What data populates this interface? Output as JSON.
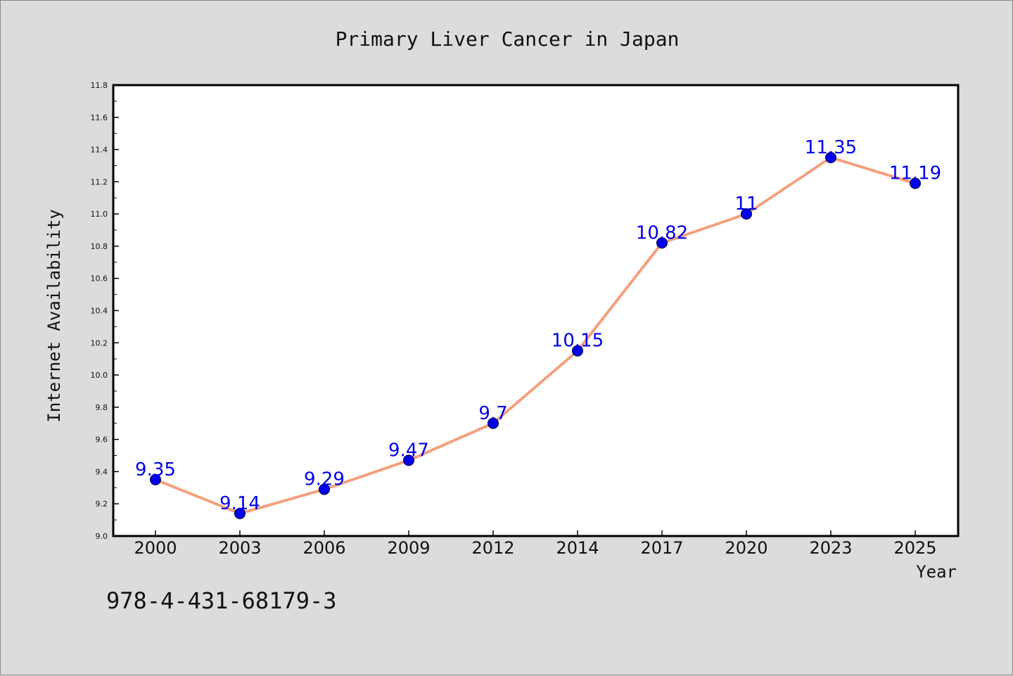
{
  "chart_data": {
    "type": "line",
    "title": "Primary Liver Cancer in Japan",
    "xlabel": "Year",
    "ylabel": "Internet Availability",
    "categories": [
      "2000",
      "2003",
      "2006",
      "2009",
      "2012",
      "2014",
      "2017",
      "2020",
      "2023",
      "2025"
    ],
    "series": [
      {
        "values": [
          9.35,
          9.14,
          9.29,
          9.47,
          9.7,
          10.15,
          10.82,
          11,
          11.35,
          11.19
        ],
        "data_labels": [
          "9.35",
          "9.14",
          "9.29",
          "9.47",
          "9.7",
          "10.15",
          "10.82",
          "11",
          "11.35",
          "11.19"
        ],
        "line_color": "#f4a07e",
        "marker_color": "#0000ee",
        "label_color": "#0000ee"
      }
    ],
    "ylim": [
      9.0,
      11.8
    ],
    "yticks": [
      "9.0",
      "9.2",
      "9.4",
      "9.6",
      "9.8",
      "10.0",
      "10.2",
      "10.4",
      "10.6",
      "10.8",
      "11.0",
      "11.2",
      "11.4",
      "11.6",
      "11.8"
    ],
    "grid": false,
    "legend": "none"
  },
  "footer": {
    "isbn": "978-4-431-68179-3"
  },
  "colors": {
    "background": "#dcdcdc",
    "plot_background": "#ffffff",
    "axis": "#000000"
  }
}
